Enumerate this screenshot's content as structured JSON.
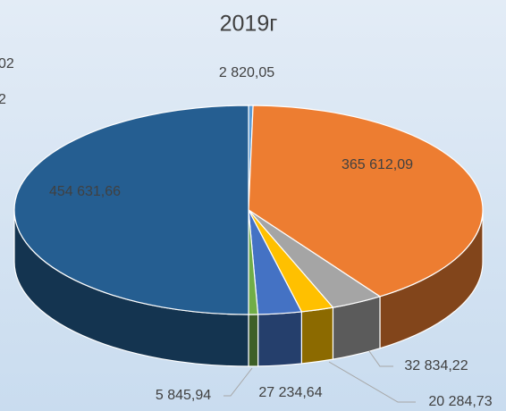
{
  "chart_data": {
    "type": "pie3d",
    "title": "2019г",
    "clipped_labels": [
      "02",
      "2"
    ],
    "values": [
      2820.05,
      365612.09,
      32834.22,
      20284.73,
      27234.64,
      5845.94,
      454631.66
    ],
    "value_labels": [
      "2 820,05",
      "365 612,09",
      "32 834,22",
      "20 284,73",
      "27 234,64",
      "5 845,94",
      "454 631,66"
    ],
    "colors": [
      "#5b9bd5",
      "#ed7d31",
      "#a5a5a5",
      "#ffc000",
      "#4472c4",
      "#70ad47",
      "#255e91"
    ]
  }
}
